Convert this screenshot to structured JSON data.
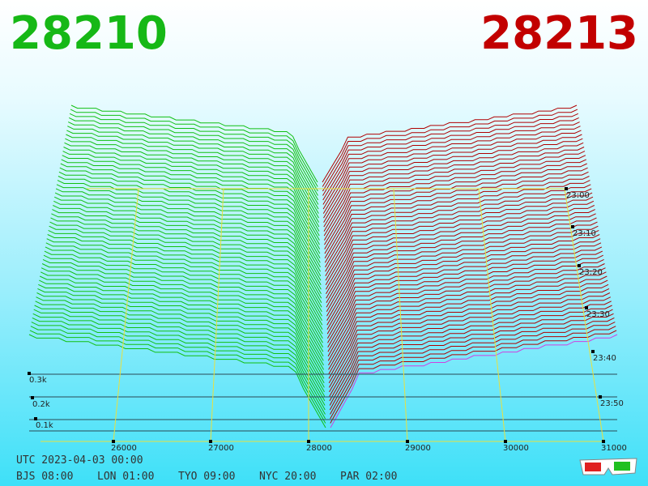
{
  "header": {
    "bid": "28210",
    "ask": "28213"
  },
  "axis": {
    "price_ticks": [
      "26000",
      "27000",
      "28000",
      "29000",
      "30000",
      "31000"
    ],
    "depth_ticks": [
      "0.3k",
      "0.2k",
      "0.1k"
    ],
    "time_ticks": [
      "23:00",
      "23:10",
      "23:20",
      "23:30",
      "23:40",
      "23:50"
    ]
  },
  "footer": {
    "utc": "UTC 2023-04-03 00:00",
    "clocks": [
      "BJS 08:00",
      "LON 01:00",
      "TYO 09:00",
      "NYC 20:00",
      "PAR 02:00"
    ]
  }
}
